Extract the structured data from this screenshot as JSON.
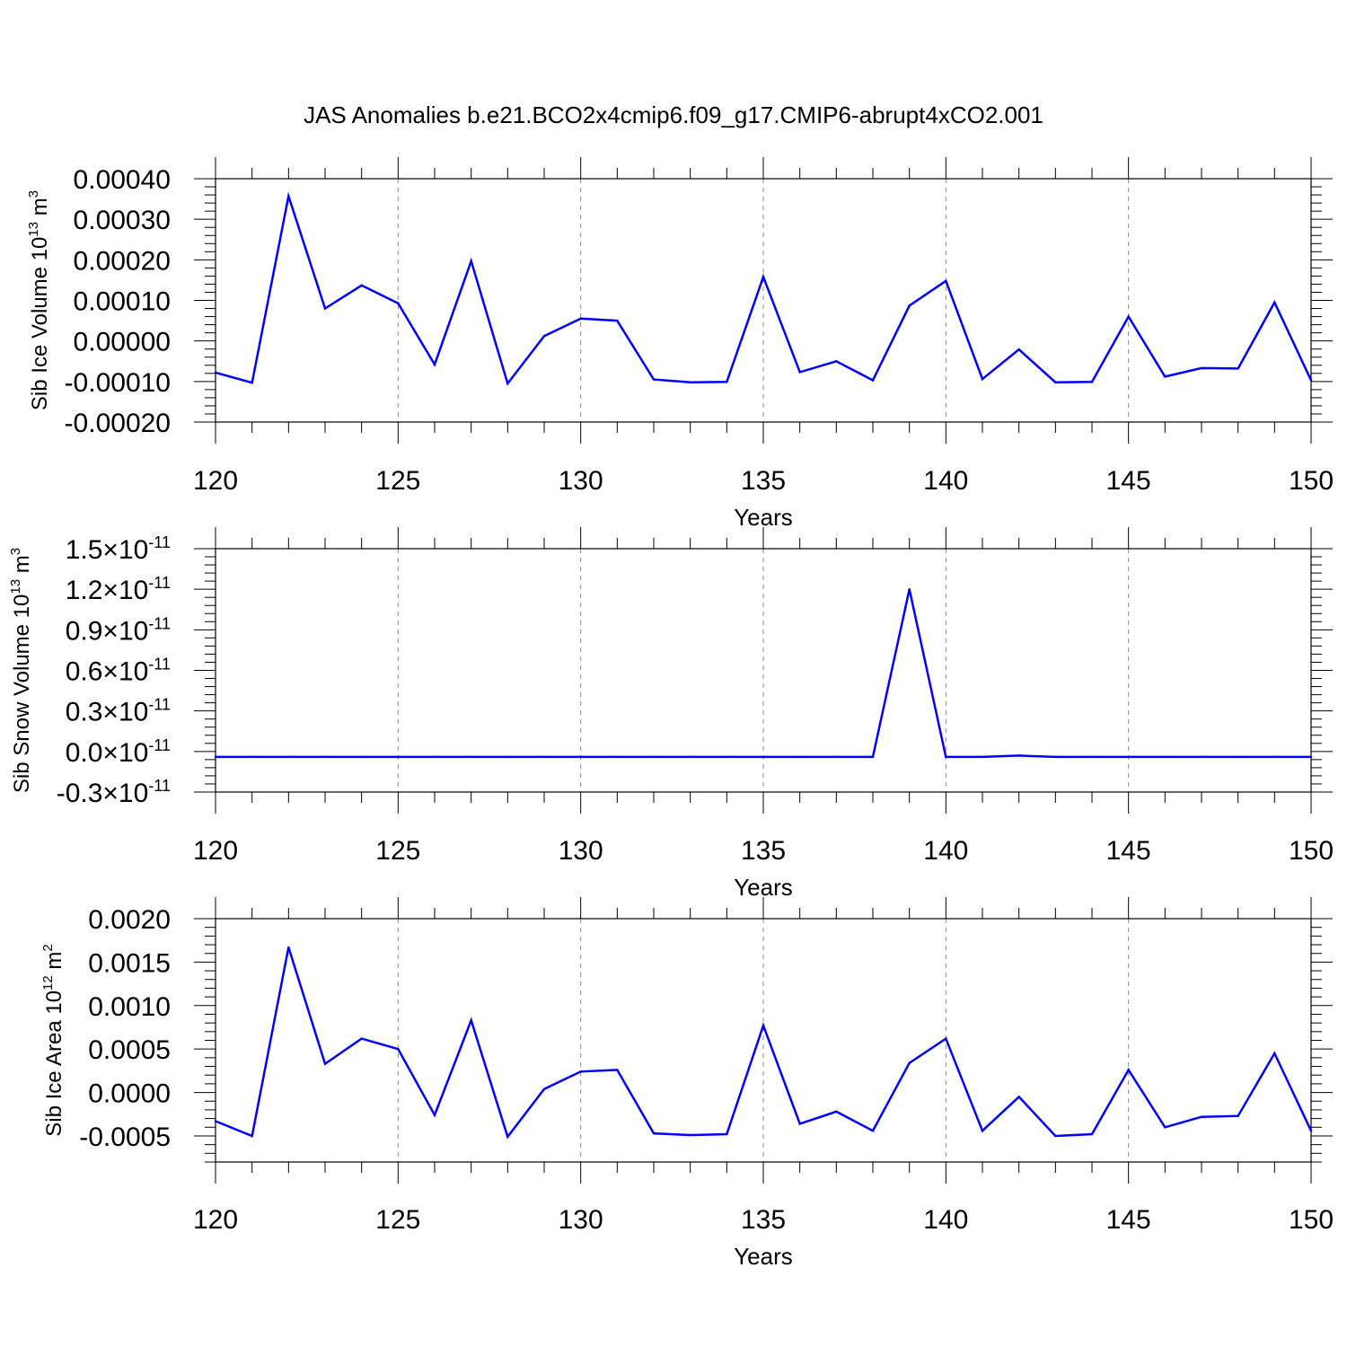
{
  "title": "JAS Anomalies b.e21.BCO2x4cmip6.f09_g17.CMIP6-abrupt4xCO2.001",
  "colors": {
    "line": "#0000ff",
    "axis": "#000000",
    "grid": "#888888"
  },
  "chart_data": [
    {
      "type": "line",
      "xlabel": "Years",
      "ylabel_parts": {
        "base": "Sib Ice Volume 10",
        "exp": "13",
        "unit": " m",
        "unit_exp": "3"
      },
      "xlim": [
        120,
        150
      ],
      "ylim": [
        -0.0002,
        0.0004
      ],
      "x_ticks": [
        "120",
        "125",
        "130",
        "135",
        "140",
        "145",
        "150"
      ],
      "y_ticks": [
        {
          "value": 0.0004,
          "label": "0.00040"
        },
        {
          "value": 0.0003,
          "label": "0.00030"
        },
        {
          "value": 0.0002,
          "label": "0.00020"
        },
        {
          "value": 0.0001,
          "label": "0.00010"
        },
        {
          "value": 0.0,
          "label": "0.00000"
        },
        {
          "value": -0.0001,
          "label": "-0.00010"
        },
        {
          "value": -0.0002,
          "label": "-0.00020"
        }
      ],
      "grid": "vertical dashed",
      "x": [
        120,
        121,
        122,
        123,
        124,
        125,
        126,
        127,
        128,
        129,
        130,
        131,
        132,
        133,
        134,
        135,
        136,
        137,
        138,
        139,
        140,
        141,
        142,
        143,
        144,
        145,
        146,
        147,
        148,
        149,
        150
      ],
      "y": [
        -7.8e-05,
        -0.000103,
        0.000357,
        8e-05,
        0.000137,
        9.3e-05,
        -5.8e-05,
        0.000197,
        -0.000105,
        1.2e-05,
        5.5e-05,
        5e-05,
        -9.5e-05,
        -0.000102,
        -0.000101,
        0.000158,
        -7.7e-05,
        -5e-05,
        -9.7e-05,
        8.7e-05,
        0.000148,
        -9.4e-05,
        -2.1e-05,
        -0.000102,
        -0.000101,
        6e-05,
        -8.8e-05,
        -6.7e-05,
        -6.8e-05,
        9.5e-05,
        -9.7e-05
      ]
    },
    {
      "type": "line",
      "xlabel": "Years",
      "ylabel_parts": {
        "base": "Sib Snow Volume 10",
        "exp": "13",
        "unit": " m",
        "unit_exp": "3"
      },
      "xlim": [
        120,
        150
      ],
      "ylim": [
        -0.3,
        1.5
      ],
      "y_scale_note": "×10^-11",
      "x_ticks": [
        "120",
        "125",
        "130",
        "135",
        "140",
        "145",
        "150"
      ],
      "y_ticks": [
        {
          "value": 1.5,
          "mant": "1.5",
          "times": "×10",
          "exp": "-11"
        },
        {
          "value": 1.2,
          "mant": "1.2",
          "times": "×10",
          "exp": "-11"
        },
        {
          "value": 0.9,
          "mant": "0.9",
          "times": "×10",
          "exp": "-11"
        },
        {
          "value": 0.6,
          "mant": "0.6",
          "times": "×10",
          "exp": "-11"
        },
        {
          "value": 0.3,
          "mant": "0.3",
          "times": "×10",
          "exp": "-11"
        },
        {
          "value": 0.0,
          "mant": "0.0",
          "times": "×10",
          "exp": "-11"
        },
        {
          "value": -0.3,
          "mant": "-0.3",
          "times": "×10",
          "exp": "-11"
        }
      ],
      "grid": "vertical dashed",
      "x": [
        120,
        121,
        122,
        123,
        124,
        125,
        126,
        127,
        128,
        129,
        130,
        131,
        132,
        133,
        134,
        135,
        136,
        137,
        138,
        139,
        140,
        141,
        142,
        143,
        144,
        145,
        146,
        147,
        148,
        149,
        150
      ],
      "y": [
        -0.04,
        -0.04,
        -0.04,
        -0.04,
        -0.04,
        -0.04,
        -0.04,
        -0.04,
        -0.04,
        -0.04,
        -0.04,
        -0.04,
        -0.04,
        -0.04,
        -0.04,
        -0.04,
        -0.04,
        -0.04,
        -0.04,
        1.2,
        -0.04,
        -0.04,
        -0.03,
        -0.04,
        -0.04,
        -0.04,
        -0.04,
        -0.04,
        -0.04,
        -0.04,
        -0.04
      ]
    },
    {
      "type": "line",
      "xlabel": "Years",
      "ylabel_parts": {
        "base": "Sib Ice Area 10",
        "exp": "12",
        "unit": " m",
        "unit_exp": "2"
      },
      "xlim": [
        120,
        150
      ],
      "ylim": [
        -0.0008,
        0.002
      ],
      "x_ticks": [
        "120",
        "125",
        "130",
        "135",
        "140",
        "145",
        "150"
      ],
      "y_ticks": [
        {
          "value": 0.002,
          "label": "0.0020"
        },
        {
          "value": 0.0015,
          "label": "0.0015"
        },
        {
          "value": 0.001,
          "label": "0.0010"
        },
        {
          "value": 0.0005,
          "label": "0.0005"
        },
        {
          "value": 0.0,
          "label": "0.0000"
        },
        {
          "value": -0.0005,
          "label": "-0.0005"
        }
      ],
      "grid": "vertical dashed",
      "x": [
        120,
        121,
        122,
        123,
        124,
        125,
        126,
        127,
        128,
        129,
        130,
        131,
        132,
        133,
        134,
        135,
        136,
        137,
        138,
        139,
        140,
        141,
        142,
        143,
        144,
        145,
        146,
        147,
        148,
        149,
        150
      ],
      "y": [
        -0.00033,
        -0.0005,
        0.00167,
        0.00033,
        0.00062,
        0.0005,
        -0.00026,
        0.00083,
        -0.00051,
        4e-05,
        0.00024,
        0.00026,
        -0.00047,
        -0.00049,
        -0.00048,
        0.00077,
        -0.00036,
        -0.00022,
        -0.00044,
        0.00034,
        0.00062,
        -0.00044,
        -5e-05,
        -0.0005,
        -0.00048,
        0.00026,
        -0.0004,
        -0.00028,
        -0.00027,
        0.00045,
        -0.00044
      ]
    }
  ]
}
